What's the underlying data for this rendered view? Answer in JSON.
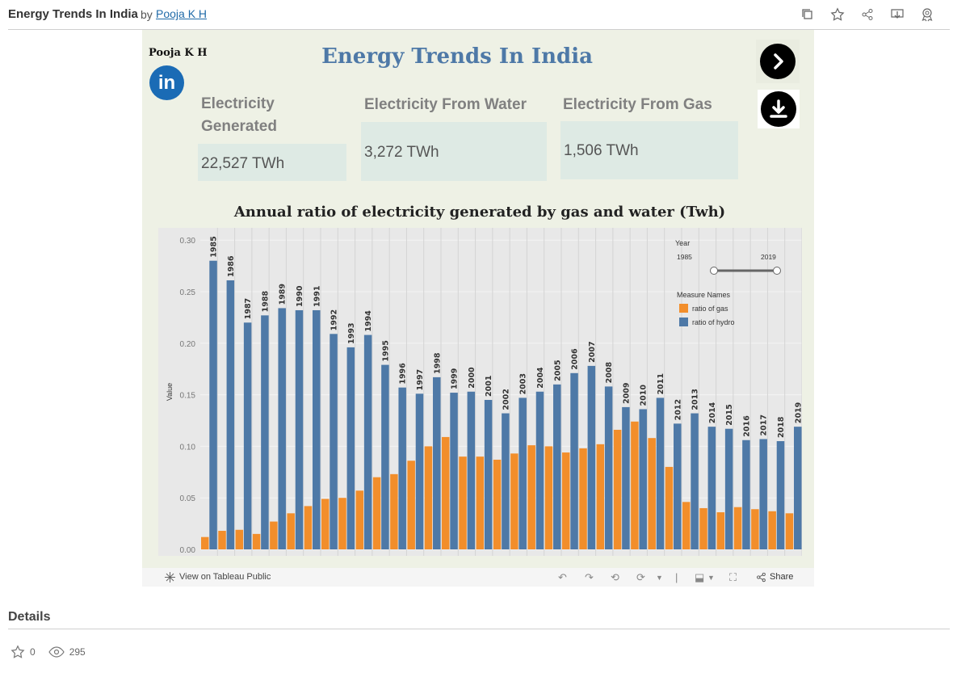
{
  "header": {
    "title": "Energy Trends In India",
    "by": "by",
    "author": "Pooja K H",
    "icons": [
      "copy-icon",
      "star-icon",
      "share-icon",
      "download-icon",
      "badge-icon"
    ]
  },
  "viz": {
    "author_name": "Pooja K H",
    "linkedin_text": "in",
    "title": "Energy Trends In India",
    "kpis": [
      {
        "label": "Electricity Generated",
        "value": "22,527 TWh"
      },
      {
        "label": "Electricity From Water",
        "value": "3,272 TWh"
      },
      {
        "label": "Electricity From Gas",
        "value": "1,506 TWh"
      }
    ],
    "chart_title": "Annual ratio of electricity generated by gas and water (Twh)"
  },
  "chart_data": {
    "type": "bar",
    "title": "Annual ratio of electricity generated by gas and water (Twh)",
    "xlabel": "",
    "ylabel": "Value",
    "ylim": [
      0,
      0.32
    ],
    "yticks": [
      0.0,
      0.05,
      0.1,
      0.15,
      0.2,
      0.25,
      0.3
    ],
    "ytick_labels": [
      "0.00",
      "0.05",
      "0.10",
      "0.15",
      "0.20",
      "0.25",
      "0.30"
    ],
    "grid": true,
    "categories": [
      "1985",
      "1986",
      "1987",
      "1988",
      "1989",
      "1990",
      "1991",
      "1992",
      "1993",
      "1994",
      "1995",
      "1996",
      "1997",
      "1998",
      "1999",
      "2000",
      "2001",
      "2002",
      "2003",
      "2004",
      "2005",
      "2006",
      "2007",
      "2008",
      "2009",
      "2010",
      "2011",
      "2012",
      "2013",
      "2014",
      "2015",
      "2016",
      "2017",
      "2018",
      "2019"
    ],
    "series": [
      {
        "name": "ratio of gas",
        "color": "#f28e2b",
        "values": [
          0.012,
          0.018,
          0.019,
          0.015,
          0.027,
          0.035,
          0.042,
          0.049,
          0.05,
          0.057,
          0.07,
          0.073,
          0.086,
          0.1,
          0.109,
          0.09,
          0.09,
          0.087,
          0.093,
          0.101,
          0.1,
          0.094,
          0.098,
          0.102,
          0.116,
          0.124,
          0.108,
          0.08,
          0.046,
          0.04,
          0.036,
          0.041,
          0.039,
          0.037,
          0.035
        ]
      },
      {
        "name": "ratio of hydro",
        "color": "#4e79a7",
        "values": [
          0.28,
          0.261,
          0.22,
          0.227,
          0.234,
          0.232,
          0.232,
          0.209,
          0.196,
          0.208,
          0.179,
          0.157,
          0.151,
          0.167,
          0.152,
          0.153,
          0.145,
          0.132,
          0.147,
          0.153,
          0.16,
          0.171,
          0.178,
          0.158,
          0.138,
          0.136,
          0.147,
          0.122,
          0.132,
          0.119,
          0.117,
          0.106,
          0.107,
          0.105,
          0.119
        ]
      }
    ],
    "legend": {
      "title": "Measure Names",
      "position": "top-right",
      "items": [
        "ratio of gas",
        "ratio of hydro"
      ]
    },
    "year_filter": {
      "label": "Year",
      "min": "1985",
      "max": "2019"
    }
  },
  "footer": {
    "view_label": "View on Tableau Public",
    "share_label": "Share"
  },
  "details": {
    "heading": "Details",
    "favorites": "0",
    "views": "295"
  }
}
